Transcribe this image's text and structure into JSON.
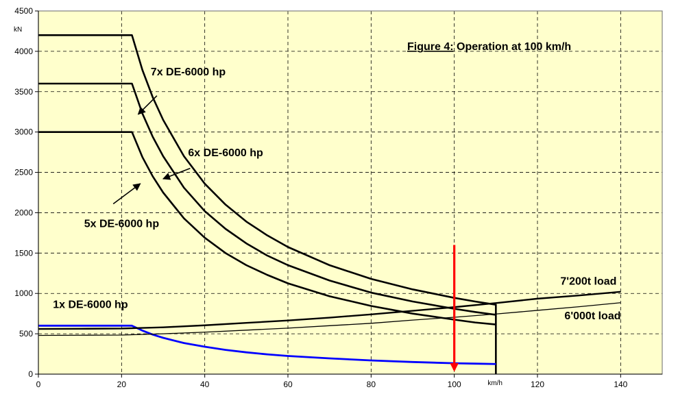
{
  "chart_data": {
    "type": "line",
    "title_prefix": "Figure 4:",
    "title_rest": " Operation at 100 km/h",
    "y_unit": "kN",
    "x_unit": "km/h",
    "xlim": [
      0,
      150
    ],
    "ylim": [
      0,
      4500
    ],
    "x_ticks": [
      0,
      20,
      40,
      60,
      80,
      100,
      120,
      140
    ],
    "y_ticks": [
      0,
      500,
      1000,
      1500,
      2000,
      2500,
      3000,
      3500,
      4000,
      4500
    ],
    "grid": true,
    "colors": {
      "plot_bg": "#ffffcc",
      "frame": "#808080",
      "grid": "#000000",
      "tractive_effort": "#000000",
      "single_loco": "#0000ff",
      "marker": "#ff0000"
    },
    "series": [
      {
        "name": "7x DE-6000 hp",
        "kind": "tractive_effort",
        "x": [
          0,
          22.5,
          25,
          27.5,
          30,
          35,
          40,
          45,
          50,
          55,
          60,
          70,
          80,
          90,
          100,
          105,
          110,
          110
        ],
        "y": [
          4200,
          4200,
          3770,
          3430,
          3150,
          2700,
          2360,
          2100,
          1890,
          1720,
          1575,
          1350,
          1180,
          1050,
          945,
          900,
          860,
          0
        ]
      },
      {
        "name": "6x DE-6000 hp",
        "kind": "tractive_effort",
        "x": [
          0,
          22.5,
          25,
          27.5,
          30,
          35,
          40,
          45,
          50,
          55,
          60,
          70,
          80,
          90,
          100,
          105,
          110
        ],
        "y": [
          3600,
          3600,
          3230,
          2940,
          2700,
          2310,
          2020,
          1800,
          1620,
          1470,
          1350,
          1160,
          1010,
          900,
          810,
          770,
          735
        ]
      },
      {
        "name": "5x DE-6000 hp",
        "kind": "tractive_effort",
        "x": [
          0,
          22.5,
          25,
          27.5,
          30,
          35,
          40,
          45,
          50,
          55,
          60,
          70,
          80,
          90,
          100,
          105,
          110
        ],
        "y": [
          3000,
          3000,
          2690,
          2450,
          2250,
          1930,
          1690,
          1500,
          1350,
          1230,
          1125,
          965,
          845,
          750,
          675,
          640,
          615
        ]
      },
      {
        "name": "1x DE-6000 hp",
        "kind": "single_loco",
        "x": [
          0,
          22.5,
          25,
          27.5,
          30,
          35,
          40,
          45,
          50,
          55,
          60,
          70,
          80,
          90,
          100,
          105,
          110
        ],
        "y": [
          600,
          600,
          540,
          490,
          450,
          385,
          340,
          300,
          270,
          245,
          225,
          195,
          170,
          150,
          135,
          130,
          125
        ]
      },
      {
        "name": "7'200t load",
        "kind": "load_resistance",
        "x": [
          0,
          10,
          20,
          30,
          40,
          50,
          60,
          70,
          80,
          90,
          100,
          110,
          120,
          130,
          140
        ],
        "y": [
          560,
          562,
          565,
          580,
          605,
          635,
          665,
          700,
          740,
          785,
          830,
          880,
          935,
          975,
          1020
        ]
      },
      {
        "name": "6'000t load",
        "kind": "load_resistance",
        "x": [
          0,
          10,
          20,
          30,
          40,
          50,
          60,
          70,
          80,
          90,
          100,
          110,
          120,
          130,
          140
        ],
        "y": [
          480,
          482,
          484,
          500,
          520,
          545,
          570,
          600,
          630,
          670,
          705,
          745,
          790,
          835,
          885
        ]
      }
    ],
    "marker_arrow": {
      "x": 100,
      "y_from": 1600,
      "y_to": 0
    },
    "annotations": [
      {
        "text": "7x DE-6000 hp",
        "label_x": 27,
        "label_y": 3700,
        "arrow_from": [
          28.5,
          3450
        ],
        "arrow_to": [
          24,
          3220
        ]
      },
      {
        "text": "6x DE-6000 hp",
        "label_x": 36,
        "label_y": 2700,
        "arrow_from": [
          36.5,
          2550
        ],
        "arrow_to": [
          30,
          2420
        ]
      },
      {
        "text": "5x DE-6000 hp",
        "label_x": 11,
        "label_y": 1820,
        "arrow_from": [
          18,
          2110
        ],
        "arrow_to": [
          24.5,
          2360
        ]
      },
      {
        "text": "1x DE-6000 hp",
        "label_x": 3.5,
        "label_y": 820
      },
      {
        "text": "7'200t load",
        "label_x": 125.5,
        "label_y": 1110
      },
      {
        "text": "6'000t load",
        "label_x": 126.5,
        "label_y": 680
      }
    ]
  }
}
